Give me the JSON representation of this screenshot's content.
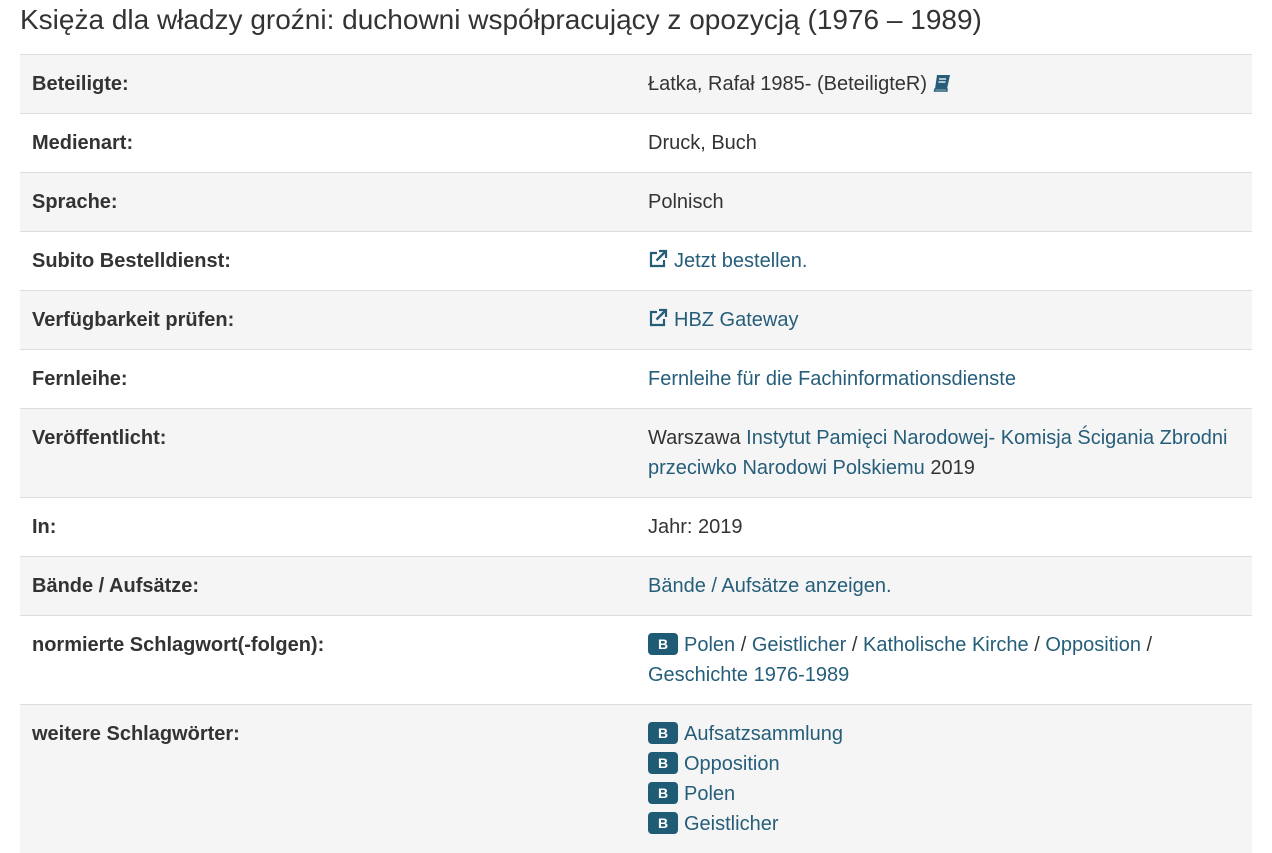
{
  "title": "Księża dla władzy groźni: duchowni współpracujący z opozycją (1976 – 1989)",
  "rows": {
    "beteiligte": {
      "label": "Beteiligte:",
      "value": "Łatka, Rafał 1985- (BeteiligteR)"
    },
    "medienart": {
      "label": "Medienart:",
      "value": "Druck, Buch"
    },
    "sprache": {
      "label": "Sprache:",
      "value": "Polnisch"
    },
    "subito": {
      "label": "Subito Bestelldienst:",
      "link": "Jetzt bestellen."
    },
    "verfuegbarkeit": {
      "label": "Verfügbarkeit prüfen:",
      "link": "HBZ Gateway"
    },
    "fernleihe": {
      "label": "Fernleihe:",
      "link": "Fernleihe für die Fachinformationsdienste"
    },
    "veroeffentlicht": {
      "label": "Veröffentlicht:",
      "place": "Warszawa",
      "publisher": "Instytut Pamięci Narodowej- Komisja Ścigania Zbrodni przeciwko Narodowi Polskiemu",
      "year": "2019"
    },
    "in": {
      "label": "In:",
      "value": "Jahr: 2019"
    },
    "baende": {
      "label": "Bände / Aufsätze:",
      "link": "Bände / Aufsätze anzeigen."
    },
    "normiert": {
      "label": "normierte Schlagwort(-folgen):",
      "badge": "B",
      "terms": [
        "Polen",
        "Geistlicher",
        "Katholische Kirche",
        "Opposition",
        "Geschichte 1976-1989"
      ],
      "separator": "/"
    },
    "weitere": {
      "label": "weitere Schlagwörter:",
      "badge": "B",
      "terms": [
        "Aufsatzsammlung",
        "Opposition",
        "Polen",
        "Geistlicher"
      ]
    }
  },
  "icons": {
    "external_link": "external-link-icon",
    "book": "book-icon"
  },
  "colors": {
    "link": "#265e7a",
    "badge": "#1f5b74",
    "stripe": "#f5f5f5"
  }
}
